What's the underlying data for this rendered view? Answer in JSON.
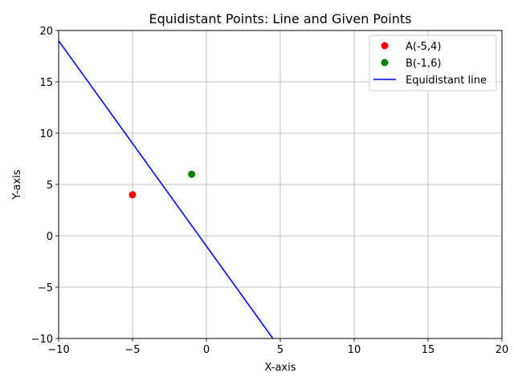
{
  "chart_data": {
    "type": "scatter",
    "title": "Equidistant Points: Line and Given Points",
    "xlabel": "X-axis",
    "ylabel": "Y-axis",
    "xlim": [
      -10,
      20
    ],
    "ylim": [
      -10,
      20
    ],
    "xticks": [
      -10,
      -5,
      0,
      5,
      10,
      15,
      20
    ],
    "yticks": [
      -10,
      -5,
      0,
      5,
      10,
      15,
      20
    ],
    "xtick_labels": [
      "−10",
      "−5",
      "0",
      "5",
      "10",
      "15",
      "20"
    ],
    "ytick_labels": [
      "−10",
      "−5",
      "0",
      "5",
      "10",
      "15",
      "20"
    ],
    "grid": true,
    "legend_position": "top-right",
    "series": [
      {
        "name": "A(-5,4)",
        "kind": "point",
        "color": "#ff0000",
        "x": [
          -5
        ],
        "y": [
          4
        ]
      },
      {
        "name": "B(-1,6)",
        "kind": "point",
        "color": "#008000",
        "x": [
          -1
        ],
        "y": [
          6
        ]
      },
      {
        "name": "Equidistant line",
        "kind": "line",
        "color": "#0000ff",
        "x": [
          -10,
          4.5
        ],
        "y": [
          19,
          -10
        ]
      }
    ]
  }
}
